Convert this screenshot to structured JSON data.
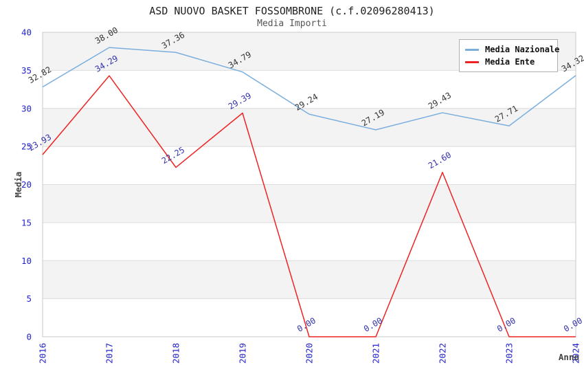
{
  "header": {
    "title": "ASD NUOVO BASKET FOSSOMBRONE (c.f.02096280413)",
    "subtitle": "Media Importi"
  },
  "chart_data": {
    "type": "line",
    "x": [
      2016,
      2017,
      2018,
      2019,
      2020,
      2021,
      2022,
      2023,
      2024
    ],
    "xlabel": "Anno",
    "ylabel": "Media",
    "ylim": [
      0,
      40
    ],
    "ytick_step": 5,
    "grid": "horizontal-bands-alternating",
    "legend_position": "top-right",
    "series": [
      {
        "name": "Media Nazionale",
        "color": "#7aaede",
        "label_color": "#333333",
        "values": [
          32.82,
          38.0,
          37.36,
          34.79,
          29.24,
          27.19,
          29.43,
          27.71,
          34.32
        ],
        "labels": [
          "32.82",
          "38.00",
          "37.36",
          "34.79",
          "29.24",
          "27.19",
          "29.43",
          "27.71",
          "34.32"
        ]
      },
      {
        "name": "Media Ente",
        "color": "#ee2222",
        "label_color": "#3333aa",
        "values": [
          23.93,
          34.29,
          22.25,
          29.39,
          0.0,
          0.0,
          21.6,
          0.0,
          0.0
        ],
        "labels": [
          "23.93",
          "34.29",
          "22.25",
          "29.39",
          "0.00",
          "0.00",
          "21.60",
          "0.00",
          "0.00"
        ]
      }
    ],
    "colors": {
      "tick": "#2222cc",
      "axis_title": "#444444",
      "band": "#f3f3f3",
      "grid": "#dcdcdc",
      "border": "#c8c8c8"
    }
  }
}
